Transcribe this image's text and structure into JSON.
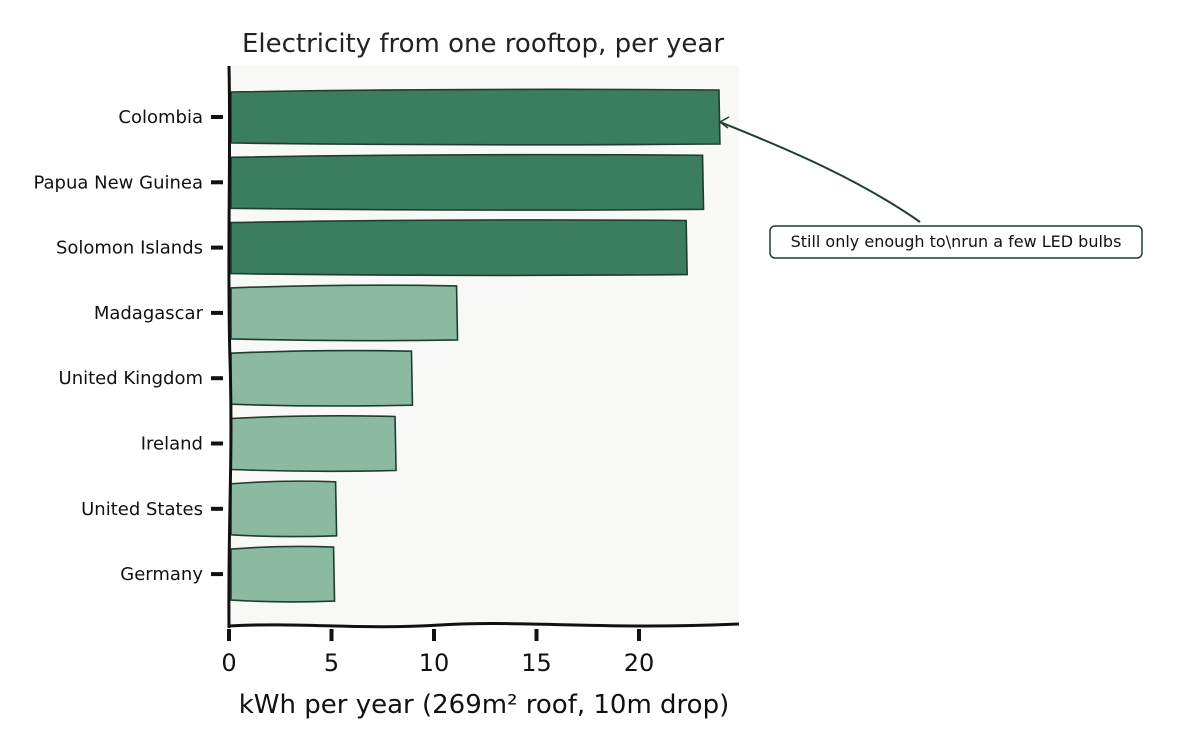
{
  "chart_data": {
    "type": "bar",
    "orientation": "horizontal",
    "title": "Electricity from one rooftop, per year",
    "xlabel": "kWh per year (269m² roof, 10m drop)",
    "ylabel": "",
    "categories": [
      "Colombia",
      "Papua New Guinea",
      "Solomon Islands",
      "Madagascar",
      "United Kingdom",
      "Ireland",
      "United States",
      "Germany"
    ],
    "values": [
      23.9,
      23.1,
      22.3,
      11.1,
      8.9,
      8.1,
      5.2,
      5.1
    ],
    "xlim": [
      0,
      25
    ],
    "xticks": [
      0,
      5,
      10,
      15,
      20
    ],
    "grid": false,
    "colors": {
      "highlight": "#3a7d5f",
      "normal": "#8bb9a1",
      "edge": "#1f3d30",
      "plot_bg": "#f8f8f6"
    },
    "highlight_count": 3,
    "annotation": {
      "text": "Still only enough to\\nrun a few LED bulbs",
      "target_category": "Colombia"
    }
  }
}
